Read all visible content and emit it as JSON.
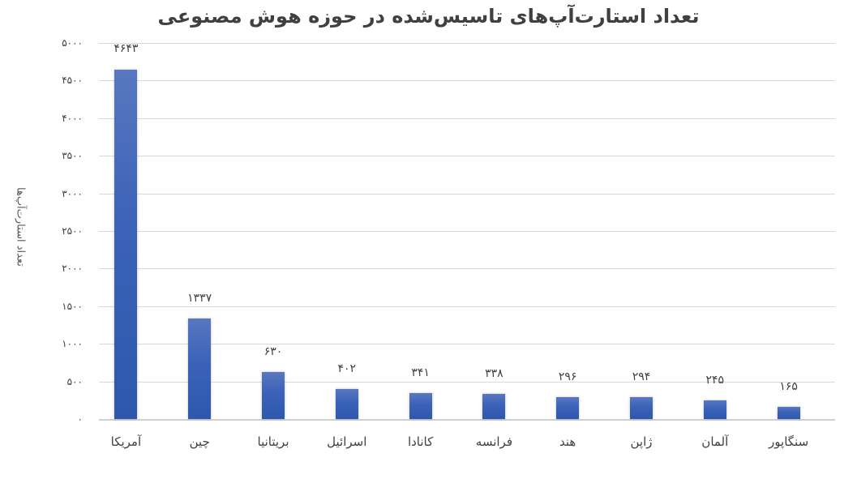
{
  "chart_data": {
    "type": "bar",
    "title": "تعداد استارت‌آپ‌های تاسیس‌شده در حوزه هوش مصنوعی",
    "xlabel": "",
    "ylabel": "تعداد استارت‌آپ‌ها",
    "ylim": [
      0,
      5000
    ],
    "yticks": [
      0,
      500,
      1000,
      1500,
      2000,
      2500,
      3000,
      3500,
      4000,
      4500,
      5000
    ],
    "ytick_labels": [
      "۰",
      "۵۰۰",
      "۱۰۰۰",
      "۱۵۰۰",
      "۲۰۰۰",
      "۲۵۰۰",
      "۳۰۰۰",
      "۳۵۰۰",
      "۴۰۰۰",
      "۴۵۰۰",
      "۵۰۰۰"
    ],
    "grid": true,
    "legend": null,
    "categories": [
      "آمریکا",
      "چین",
      "بریتانیا",
      "اسرائیل",
      "کانادا",
      "فرانسه",
      "هند",
      "ژاپن",
      "آلمان",
      "سنگاپور"
    ],
    "values": [
      4643,
      1337,
      630,
      402,
      341,
      338,
      296,
      294,
      245,
      165
    ],
    "value_labels": [
      "۴۶۴۳",
      "۱۳۳۷",
      "۶۳۰",
      "۴۰۲",
      "۳۴۱",
      "۳۳۸",
      "۲۹۶",
      "۲۹۴",
      "۲۴۵",
      "۱۶۵"
    ],
    "bar_color": "#3a60b6",
    "grid_color": "#d9d9d9"
  }
}
